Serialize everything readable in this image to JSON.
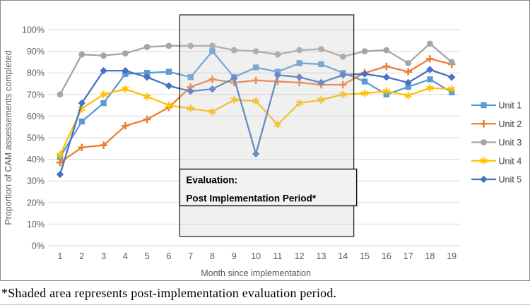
{
  "footnote": "*Shaded area represents post-implementation evaluation period.",
  "colors": {
    "unit1": "#5B9BD5",
    "unit2": "#ED7D31",
    "unit3": "#A5A5A5",
    "unit4": "#FFC000",
    "unit5": "#4472C4",
    "gridline": "#D9D9D9",
    "axis_text": "#595959",
    "legend_text": "#404040",
    "shade_border": "#1a1a1a",
    "shade_fill": "#c9c9c9"
  },
  "chart_data": {
    "type": "line",
    "title": "",
    "xlabel": "Month since implementation",
    "ylabel": "Proportion of CAM assessements completed",
    "x": [
      1,
      2,
      3,
      4,
      5,
      6,
      7,
      8,
      9,
      10,
      11,
      12,
      13,
      14,
      15,
      16,
      17,
      18,
      19
    ],
    "ylim": [
      0,
      100
    ],
    "y_tick_values": [
      0,
      10,
      20,
      30,
      40,
      50,
      60,
      70,
      80,
      90,
      100
    ],
    "y_ticks": [
      "0%",
      "10%",
      "20%",
      "30%",
      "40%",
      "50%",
      "60%",
      "70%",
      "80%",
      "90%",
      "100%"
    ],
    "grid": "horizontal",
    "legend_position": "right",
    "series": [
      {
        "name": "Unit 1",
        "color": "#5B9BD5",
        "marker": "square",
        "values": [
          41,
          57.5,
          66,
          79.5,
          80,
          80.5,
          78,
          90,
          78,
          82.5,
          80.5,
          84.5,
          84,
          80,
          76,
          70,
          73.5,
          77,
          71
        ]
      },
      {
        "name": "Unit 2",
        "color": "#ED7D31",
        "marker": "plus",
        "values": [
          38.5,
          45.5,
          46.5,
          55.5,
          58.5,
          64,
          73.5,
          77,
          75.5,
          76.5,
          76,
          75.5,
          74.5,
          74.5,
          80,
          83,
          80.5,
          86.5,
          84
        ]
      },
      {
        "name": "Unit 3",
        "color": "#A5A5A5",
        "marker": "circle",
        "values": [
          70,
          88.5,
          88,
          89,
          92,
          92.5,
          92.5,
          92.5,
          90.5,
          90,
          88.5,
          90.5,
          91,
          87.5,
          90,
          90.5,
          84.5,
          93.5,
          85
        ]
      },
      {
        "name": "Unit 4",
        "color": "#FFC000",
        "marker": "asterisk",
        "values": [
          42,
          63.5,
          70,
          72.5,
          69,
          65,
          63.5,
          62,
          67.5,
          67,
          56,
          66,
          67.5,
          70,
          70.5,
          71.5,
          69.5,
          73,
          72.5
        ]
      },
      {
        "name": "Unit 5",
        "color": "#4472C4",
        "marker": "diamond",
        "values": [
          33,
          66,
          81,
          81,
          78,
          74,
          71.5,
          72.5,
          77.5,
          42.5,
          79,
          78,
          75.5,
          79,
          79.5,
          78,
          75.5,
          81.5,
          78
        ]
      }
    ],
    "shaded_region": {
      "x_start": 6.5,
      "x_end": 14.5,
      "label_lines": [
        "Evaluation:",
        "Post Implementation Period*"
      ]
    }
  }
}
